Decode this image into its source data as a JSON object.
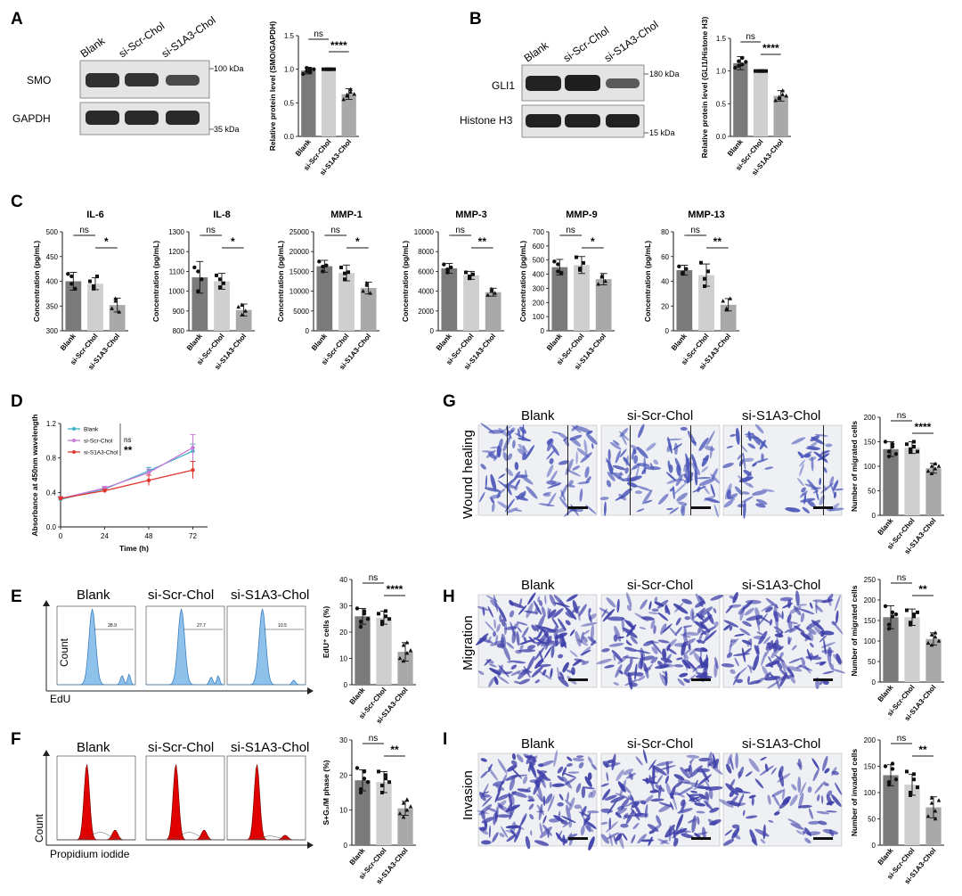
{
  "panels": {
    "A": "A",
    "B": "B",
    "C": "C",
    "D": "D",
    "E": "E",
    "F": "F",
    "G": "G",
    "H": "H",
    "I": "I"
  },
  "groups": [
    "Blank",
    "si-Scr-Chol",
    "si-S1A3-Chol"
  ],
  "western": {
    "A": {
      "proteins": [
        "SMO",
        "GAPDH"
      ],
      "markers": [
        "100 kDa",
        "35 kDa"
      ]
    },
    "B": {
      "proteins": [
        "GLI1",
        "Histone H3"
      ],
      "markers": [
        "180 kDa",
        "15 kDa"
      ]
    }
  },
  "flow": {
    "E": {
      "gates": [
        "28.9",
        "27.7",
        "10.5"
      ],
      "x_axis": "EdU",
      "y_axis": "Count"
    },
    "F": {
      "x_axis": "Propidium iodide",
      "y_axis": "Count"
    }
  },
  "micro": {
    "G": {
      "row": "Wound healing",
      "color": "#4a55b8"
    },
    "H": {
      "row": "Migration",
      "color": "#3d3fa8"
    },
    "I": {
      "row": "Invasion",
      "color": "#3d3fa8"
    }
  },
  "chart_data": [
    {
      "id": "A",
      "type": "bar",
      "categories": [
        "Blank",
        "si-Scr-Chol",
        "si-S1A3-Chol"
      ],
      "values": [
        0.98,
        1.0,
        0.63
      ],
      "errors": [
        0.05,
        0.0,
        0.08
      ],
      "points": [
        [
          0.93,
          0.97,
          1.0,
          1.02,
          0.96,
          1.0
        ],
        [
          1,
          1,
          1,
          1,
          1,
          1
        ],
        [
          0.55,
          0.62,
          0.7,
          0.6,
          0.66,
          0.63
        ]
      ],
      "ylabel": "Relative protein level (SMO/GAPDH)",
      "ylim": [
        0,
        1.5
      ],
      "yticks": [
        "0.0",
        "0.5",
        "1.0",
        "1.5"
      ],
      "sig": [
        {
          "text": "ns",
          "from": 0,
          "to": 1
        },
        {
          "text": "****",
          "from": 1,
          "to": 2
        }
      ]
    },
    {
      "id": "B",
      "type": "bar",
      "categories": [
        "Blank",
        "si-Scr-Chol",
        "si-S1A3-Chol"
      ],
      "values": [
        1.12,
        1.0,
        0.62
      ],
      "errors": [
        0.1,
        0.0,
        0.08
      ],
      "points": [
        [
          1.05,
          1.15,
          1.2,
          1.08,
          1.1,
          1.14
        ],
        [
          1,
          1,
          1,
          1,
          1,
          1
        ],
        [
          0.55,
          0.6,
          0.7,
          0.58,
          0.64,
          0.62
        ]
      ],
      "ylabel": "Relative protein level (GLI1/Histone H3)",
      "ylim": [
        0,
        1.5
      ],
      "yticks": [
        "0.0",
        "0.5",
        "1.0",
        "1.5"
      ],
      "sig": [
        {
          "text": "ns",
          "from": 0,
          "to": 1
        },
        {
          "text": "****",
          "from": 1,
          "to": 2
        }
      ]
    },
    {
      "id": "IL-6",
      "title": "IL-6",
      "type": "bar",
      "categories": [
        "Blank",
        "si-Scr-Chol",
        "si-S1A3-Chol"
      ],
      "values": [
        400,
        395,
        352
      ],
      "errors": [
        18,
        12,
        14
      ],
      "points": [
        [
          415,
          395,
          385,
          410
        ],
        [
          400,
          390,
          410,
          385
        ],
        [
          345,
          360,
          338,
          365
        ]
      ],
      "ylabel": "Concentration (pg/mL)",
      "ylim": [
        300,
        500
      ],
      "yticks": [
        "300",
        "350",
        "400",
        "450",
        "500"
      ],
      "sig": [
        {
          "text": "ns",
          "from": 0,
          "to": 1
        },
        {
          "text": "*",
          "from": 1,
          "to": 2
        }
      ]
    },
    {
      "id": "IL-8",
      "title": "IL-8",
      "type": "bar",
      "categories": [
        "Blank",
        "si-Scr-Chol",
        "si-S1A3-Chol"
      ],
      "values": [
        1070,
        1050,
        905
      ],
      "errors": [
        80,
        40,
        30
      ],
      "points": [
        [
          1120,
          1000,
          1060,
          1100
        ],
        [
          1080,
          1020,
          1040,
          1060
        ],
        [
          920,
          880,
          900,
          930
        ]
      ],
      "ylabel": "Concentration (pg/mL)",
      "ylim": [
        800,
        1300
      ],
      "yticks": [
        "800",
        "900",
        "1000",
        "1100",
        "1200",
        "1300"
      ],
      "sig": [
        {
          "text": "ns",
          "from": 0,
          "to": 1
        },
        {
          "text": "*",
          "from": 1,
          "to": 2
        }
      ]
    },
    {
      "id": "MMP-1",
      "title": "MMP-1",
      "type": "bar",
      "categories": [
        "Blank",
        "si-Scr-Chol",
        "si-S1A3-Chol"
      ],
      "values": [
        16300,
        14600,
        10800
      ],
      "errors": [
        1500,
        2000,
        1500
      ],
      "points": [
        [
          17500,
          15000,
          16500,
          16200
        ],
        [
          16000,
          13000,
          14800,
          14500
        ],
        [
          10000,
          11500,
          9500,
          12000
        ]
      ],
      "ylabel": "Concentration (pg/mL)",
      "ylim": [
        0,
        25000
      ],
      "yticks": [
        "0",
        "5000",
        "10000",
        "15000",
        "20000",
        "25000"
      ],
      "sig": [
        {
          "text": "ns",
          "from": 0,
          "to": 1
        },
        {
          "text": "*",
          "from": 1,
          "to": 2
        }
      ]
    },
    {
      "id": "MMP-3",
      "title": "MMP-3",
      "type": "bar",
      "categories": [
        "Blank",
        "si-Scr-Chol",
        "si-S1A3-Chol"
      ],
      "values": [
        6300,
        5600,
        3900
      ],
      "errors": [
        500,
        400,
        400
      ],
      "points": [
        [
          6700,
          5900,
          6400,
          6200
        ],
        [
          5900,
          5300,
          5700,
          5500
        ],
        [
          3600,
          4200,
          3800,
          4000
        ]
      ],
      "ylabel": "Concentration (pg/mL)",
      "ylim": [
        0,
        10000
      ],
      "yticks": [
        "0",
        "2000",
        "4000",
        "6000",
        "8000",
        "10000"
      ],
      "sig": [
        {
          "text": "ns",
          "from": 0,
          "to": 1
        },
        {
          "text": "**",
          "from": 1,
          "to": 2
        }
      ]
    },
    {
      "id": "MMP-9",
      "title": "MMP-9",
      "type": "bar",
      "categories": [
        "Blank",
        "si-Scr-Chol",
        "si-S1A3-Chol"
      ],
      "values": [
        450,
        465,
        365
      ],
      "errors": [
        55,
        60,
        40
      ],
      "points": [
        [
          490,
          420,
          410,
          470
        ],
        [
          520,
          430,
          480,
          440
        ],
        [
          330,
          390,
          350,
          380
        ]
      ],
      "ylabel": "Concentration (pg/mL)",
      "ylim": [
        0,
        700
      ],
      "yticks": [
        "0",
        "100",
        "200",
        "300",
        "400",
        "500",
        "600",
        "700"
      ],
      "sig": [
        {
          "text": "ns",
          "from": 0,
          "to": 1
        },
        {
          "text": "*",
          "from": 1,
          "to": 2
        }
      ]
    },
    {
      "id": "MMP-13",
      "title": "MMP-13",
      "type": "bar",
      "categories": [
        "Blank",
        "si-Scr-Chol",
        "si-S1A3-Chol"
      ],
      "values": [
        49,
        45,
        21
      ],
      "errors": [
        4,
        9,
        5
      ],
      "points": [
        [
          52,
          46,
          50,
          47
        ],
        [
          55,
          36,
          48,
          42
        ],
        [
          24,
          17,
          26,
          18
        ]
      ],
      "ylabel": "Concentration (pg/mL)",
      "ylim": [
        0,
        80
      ],
      "yticks": [
        "0",
        "20",
        "40",
        "60",
        "80"
      ],
      "sig": [
        {
          "text": "ns",
          "from": 0,
          "to": 1
        },
        {
          "text": "**",
          "from": 1,
          "to": 2
        }
      ]
    },
    {
      "id": "D",
      "type": "line",
      "x": [
        0,
        24,
        48,
        72
      ],
      "xlabel": "Time (h)",
      "ylabel": "Absorbance at 450nm wavelength",
      "ylim": [
        0,
        1.2
      ],
      "yticks": [
        "0.0",
        "0.4",
        "0.8",
        "1.2"
      ],
      "xticks": [
        "0",
        "24",
        "48",
        "72"
      ],
      "series": [
        {
          "name": "Blank",
          "values": [
            0.32,
            0.44,
            0.65,
            0.88
          ],
          "errors": [
            0.02,
            0.02,
            0.04,
            0.08
          ],
          "color": "#3fb1c6"
        },
        {
          "name": "si-Scr-Chol",
          "values": [
            0.33,
            0.45,
            0.63,
            0.92
          ],
          "errors": [
            0.02,
            0.02,
            0.04,
            0.15
          ],
          "color": "#c77ad8"
        },
        {
          "name": "si-S1A3-Chol",
          "values": [
            0.33,
            0.42,
            0.54,
            0.66
          ],
          "errors": [
            0.02,
            0.02,
            0.06,
            0.1
          ],
          "color": "#e2362e"
        }
      ],
      "sig": [
        {
          "text": "ns"
        },
        {
          "text": "**"
        }
      ]
    },
    {
      "id": "E",
      "type": "bar",
      "categories": [
        "Blank",
        "si-Scr-Chol",
        "si-S1A3-Chol"
      ],
      "values": [
        26,
        25.5,
        12.5
      ],
      "errors": [
        3,
        2.5,
        3.5
      ],
      "points": [
        [
          29,
          24,
          27,
          22,
          28,
          25
        ],
        [
          27,
          24,
          28,
          23,
          26,
          25
        ],
        [
          10,
          15,
          12,
          9,
          16,
          13
        ]
      ],
      "ylabel": "EdU⁺ cells (%)",
      "ylim": [
        0,
        40
      ],
      "yticks": [
        "0",
        "10",
        "20",
        "30",
        "40"
      ],
      "sig": [
        {
          "text": "ns",
          "from": 0,
          "to": 1
        },
        {
          "text": "****",
          "from": 1,
          "to": 2
        }
      ]
    },
    {
      "id": "F",
      "type": "bar",
      "categories": [
        "Blank",
        "si-Scr-Chol",
        "si-S1A3-Chol"
      ],
      "values": [
        18.5,
        18,
        10.5
      ],
      "errors": [
        3,
        3,
        2
      ],
      "points": [
        [
          22,
          16,
          19,
          15,
          21,
          18
        ],
        [
          21,
          17,
          20,
          15,
          19,
          18
        ],
        [
          9,
          12,
          10,
          8,
          13,
          11
        ]
      ],
      "ylabel": "S+G₂/M phase (%)",
      "ylim": [
        0,
        30
      ],
      "yticks": [
        "0",
        "10",
        "20",
        "30"
      ],
      "sig": [
        {
          "text": "ns",
          "from": 0,
          "to": 1
        },
        {
          "text": "**",
          "from": 1,
          "to": 2
        }
      ]
    },
    {
      "id": "G",
      "type": "bar",
      "categories": [
        "Blank",
        "si-Scr-Chol",
        "si-S1A3-Chol"
      ],
      "values": [
        135,
        138,
        96
      ],
      "errors": [
        15,
        12,
        10
      ],
      "points": [
        [
          150,
          120,
          140,
          130,
          145,
          125
        ],
        [
          145,
          130,
          140,
          135,
          150,
          130
        ],
        [
          90,
          100,
          105,
          85,
          95,
          100
        ]
      ],
      "ylabel": "Number of migrated cells",
      "ylim": [
        0,
        200
      ],
      "yticks": [
        "0",
        "50",
        "100",
        "150",
        "200"
      ],
      "sig": [
        {
          "text": "ns",
          "from": 0,
          "to": 1
        },
        {
          "text": "****",
          "from": 1,
          "to": 2
        }
      ]
    },
    {
      "id": "H",
      "type": "bar",
      "categories": [
        "Blank",
        "si-Scr-Chol",
        "si-S1A3-Chol"
      ],
      "values": [
        158,
        158,
        105
      ],
      "errors": [
        28,
        20,
        15
      ],
      "points": [
        [
          185,
          140,
          170,
          130,
          160,
          165
        ],
        [
          175,
          145,
          165,
          140,
          160,
          170
        ],
        [
          95,
          115,
          110,
          90,
          120,
          100
        ]
      ],
      "ylabel": "Number of migrated cells",
      "ylim": [
        0,
        250
      ],
      "yticks": [
        "0",
        "50",
        "100",
        "150",
        "200",
        "250"
      ],
      "sig": [
        {
          "text": "ns",
          "from": 0,
          "to": 1
        },
        {
          "text": "**",
          "from": 1,
          "to": 2
        }
      ]
    },
    {
      "id": "I",
      "type": "bar",
      "categories": [
        "Blank",
        "si-Scr-Chol",
        "si-S1A3-Chol"
      ],
      "values": [
        133,
        115,
        72
      ],
      "errors": [
        20,
        20,
        20
      ],
      "points": [
        [
          150,
          115,
          145,
          120,
          155,
          125
        ],
        [
          140,
          95,
          125,
          100,
          135,
          110
        ],
        [
          55,
          90,
          65,
          80,
          50,
          85
        ]
      ],
      "ylabel": "Number of invaded cells",
      "ylim": [
        0,
        200
      ],
      "yticks": [
        "0",
        "50",
        "100",
        "150",
        "200"
      ],
      "sig": [
        {
          "text": "ns",
          "from": 0,
          "to": 1
        },
        {
          "text": "**",
          "from": 1,
          "to": 2
        }
      ]
    }
  ]
}
